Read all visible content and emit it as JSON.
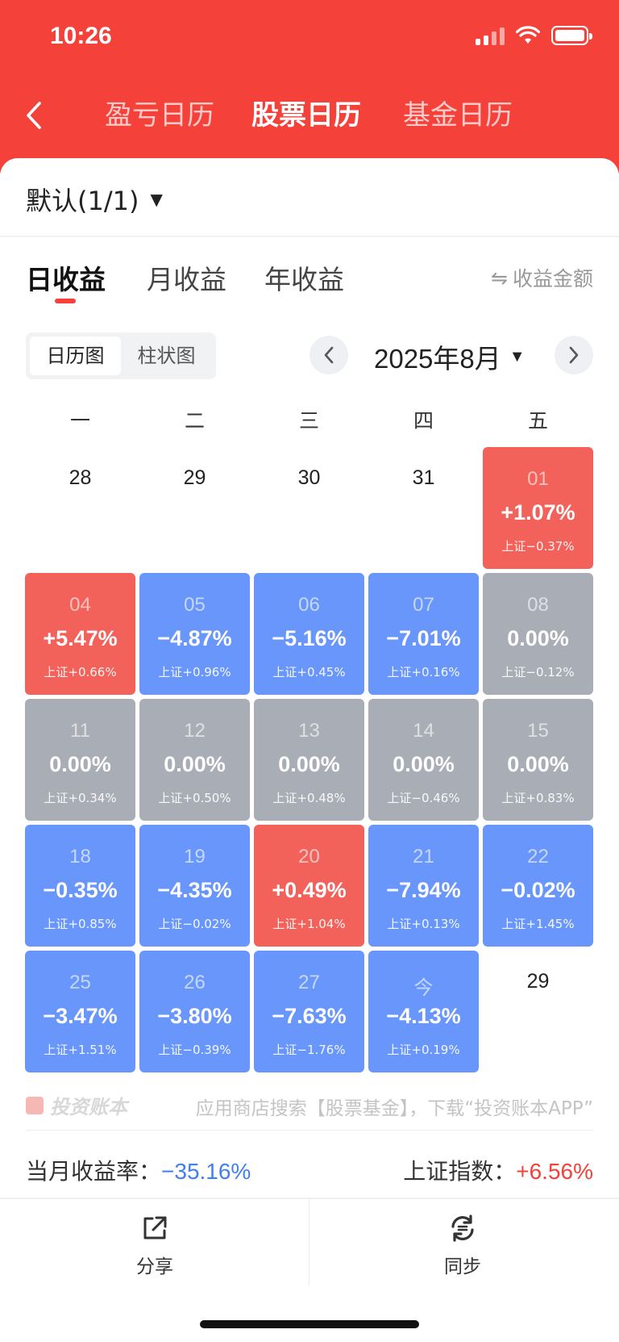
{
  "status_bar": {
    "time": "10:26"
  },
  "nav": {
    "tabs": [
      "盈亏日历",
      "股票日历",
      "基金日历"
    ],
    "active_tab": "股票日历"
  },
  "group": {
    "label": "默认(1/1)"
  },
  "period_tabs": [
    "日收益",
    "月收益",
    "年收益"
  ],
  "amount_toggle": "收益金额",
  "view_switch": [
    "日历图",
    "柱状图"
  ],
  "month": {
    "label": "2025年8月"
  },
  "weekdays": [
    "一",
    "二",
    "三",
    "四",
    "五"
  ],
  "calendar": {
    "rows": [
      [
        {
          "day": "28",
          "ret": "",
          "idx": "",
          "kind": "plain"
        },
        {
          "day": "29",
          "ret": "",
          "idx": "",
          "kind": "plain"
        },
        {
          "day": "30",
          "ret": "",
          "idx": "",
          "kind": "plain"
        },
        {
          "day": "31",
          "ret": "",
          "idx": "",
          "kind": "plain"
        },
        {
          "day": "01",
          "ret": "+1.07%",
          "idx": "上证−0.37%",
          "kind": "pos"
        }
      ],
      [
        {
          "day": "04",
          "ret": "+5.47%",
          "idx": "上证+0.66%",
          "kind": "pos"
        },
        {
          "day": "05",
          "ret": "−4.87%",
          "idx": "上证+0.96%",
          "kind": "neg"
        },
        {
          "day": "06",
          "ret": "−5.16%",
          "idx": "上证+0.45%",
          "kind": "neg"
        },
        {
          "day": "07",
          "ret": "−7.01%",
          "idx": "上证+0.16%",
          "kind": "neg"
        },
        {
          "day": "08",
          "ret": "0.00%",
          "idx": "上证−0.12%",
          "kind": "zero"
        }
      ],
      [
        {
          "day": "11",
          "ret": "0.00%",
          "idx": "上证+0.34%",
          "kind": "zero"
        },
        {
          "day": "12",
          "ret": "0.00%",
          "idx": "上证+0.50%",
          "kind": "zero"
        },
        {
          "day": "13",
          "ret": "0.00%",
          "idx": "上证+0.48%",
          "kind": "zero"
        },
        {
          "day": "14",
          "ret": "0.00%",
          "idx": "上证−0.46%",
          "kind": "zero"
        },
        {
          "day": "15",
          "ret": "0.00%",
          "idx": "上证+0.83%",
          "kind": "zero"
        }
      ],
      [
        {
          "day": "18",
          "ret": "−0.35%",
          "idx": "上证+0.85%",
          "kind": "neg"
        },
        {
          "day": "19",
          "ret": "−4.35%",
          "idx": "上证−0.02%",
          "kind": "neg"
        },
        {
          "day": "20",
          "ret": "+0.49%",
          "idx": "上证+1.04%",
          "kind": "pos"
        },
        {
          "day": "21",
          "ret": "−7.94%",
          "idx": "上证+0.13%",
          "kind": "neg"
        },
        {
          "day": "22",
          "ret": "−0.02%",
          "idx": "上证+1.45%",
          "kind": "neg"
        }
      ],
      [
        {
          "day": "25",
          "ret": "−3.47%",
          "idx": "上证+1.51%",
          "kind": "neg"
        },
        {
          "day": "26",
          "ret": "−3.80%",
          "idx": "上证−0.39%",
          "kind": "neg"
        },
        {
          "day": "27",
          "ret": "−7.63%",
          "idx": "上证−1.76%",
          "kind": "neg"
        },
        {
          "day": "今",
          "ret": "−4.13%",
          "idx": "上证+0.19%",
          "kind": "neg"
        },
        {
          "day": "29",
          "ret": "",
          "idx": "",
          "kind": "plain"
        }
      ]
    ]
  },
  "footer": {
    "brand": "投资账本",
    "hint": "应用商店搜索【股票基金】，下载“投资账本APP”"
  },
  "summary": {
    "month_return_label": "当月收益率：",
    "month_return_value": "−35.16%",
    "index_label": "上证指数：",
    "index_value": "+6.56%"
  },
  "actions": {
    "share": "分享",
    "sync": "同步"
  },
  "colors": {
    "header": "#f4413a",
    "positive": "#f3625a",
    "negative": "#6896fb",
    "zero": "#a9adb6"
  }
}
